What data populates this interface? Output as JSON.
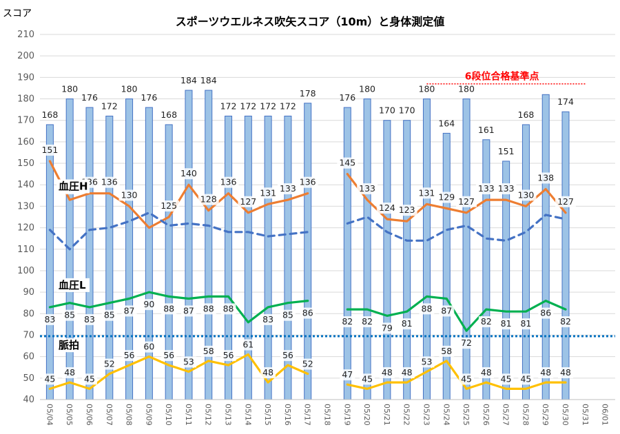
{
  "chart_data": {
    "type": "bar",
    "title": "スポーツウエルネス吹矢スコア（10m）と身体測定値",
    "ylabel": "スコア",
    "ylim": [
      40,
      210
    ],
    "yticks": [
      40,
      50,
      60,
      70,
      80,
      90,
      100,
      110,
      120,
      130,
      140,
      150,
      160,
      170,
      180,
      190,
      200,
      210
    ],
    "categories": [
      "05/04",
      "05/05",
      "05/06",
      "05/07",
      "05/08",
      "05/09",
      "05/10",
      "05/11",
      "05/12",
      "05/13",
      "05/14",
      "05/15",
      "05/16",
      "05/17",
      "05/18",
      "05/19",
      "05/20",
      "05/21",
      "05/22",
      "05/23",
      "05/24",
      "05/25",
      "05/26",
      "05/27",
      "05/28",
      "05/29",
      "05/30",
      "05/31",
      "06/01"
    ],
    "grid": true,
    "colors": {
      "bar": "#9dc3e6",
      "bar_edge": "#4472c4",
      "bp_high": "#ed7d31",
      "bp_trend": "#4472c4",
      "bp_low": "#00b050",
      "pulse": "#ffc000",
      "reference": "#ff0000",
      "threshold": "#0070c0"
    },
    "series": [
      {
        "name": "スコア",
        "type": "bar",
        "values": [
          168,
          180,
          176,
          172,
          180,
          176,
          168,
          184,
          184,
          172,
          172,
          172,
          172,
          178,
          null,
          176,
          180,
          170,
          170,
          180,
          164,
          180,
          161,
          151,
          168,
          182,
          174,
          null,
          null
        ],
        "labels": [
          "168",
          "180",
          "176",
          "172",
          "180",
          "176",
          "168",
          "184",
          "184",
          "172",
          "172",
          "172",
          "172",
          "178",
          "",
          "176",
          "180",
          "170",
          "170",
          "180",
          "164",
          "180",
          "161",
          "151",
          "168",
          "",
          "174",
          "",
          ""
        ]
      },
      {
        "name": "血圧H",
        "type": "line",
        "values": [
          151,
          133,
          136,
          136,
          130,
          120,
          125,
          140,
          128,
          136,
          127,
          131,
          133,
          136,
          null,
          145,
          133,
          124,
          123,
          131,
          129,
          127,
          133,
          133,
          130,
          138,
          127,
          null,
          null
        ],
        "labels": [
          "151",
          "133",
          "136",
          "136",
          "130",
          "",
          "125",
          "140",
          "128",
          "136",
          "127",
          "131",
          "133",
          "136",
          "",
          "145",
          "133",
          "124",
          "123",
          "131",
          "129",
          "127",
          "133",
          "133",
          "130",
          "138",
          "127",
          "",
          ""
        ]
      },
      {
        "type": "line",
        "dashed": true,
        "values": [
          119,
          110,
          119,
          120,
          123,
          127,
          121,
          122,
          121,
          118,
          118,
          116,
          117,
          118,
          null,
          122,
          125,
          118,
          114,
          114,
          119,
          121,
          115,
          114,
          118,
          126,
          124,
          null,
          null
        ]
      },
      {
        "name": "血圧L",
        "type": "line",
        "values": [
          83,
          85,
          83,
          85,
          87,
          90,
          88,
          87,
          88,
          88,
          76,
          83,
          85,
          86,
          null,
          82,
          82,
          79,
          81,
          88,
          87,
          72,
          82,
          81,
          81,
          86,
          82,
          null,
          null
        ],
        "labels": [
          "83",
          "85",
          "83",
          "85",
          "87",
          "90",
          "88",
          "87",
          "88",
          "88",
          "",
          "83",
          "85",
          "86",
          "",
          "82",
          "82",
          "79",
          "81",
          "88",
          "87",
          "72",
          "82",
          "81",
          "81",
          "86",
          "82",
          "",
          ""
        ]
      },
      {
        "name": "脈拍",
        "type": "line",
        "values": [
          45,
          48,
          45,
          52,
          56,
          60,
          56,
          53,
          58,
          56,
          61,
          48,
          56,
          52,
          null,
          47,
          45,
          48,
          48,
          53,
          58,
          45,
          48,
          45,
          45,
          48,
          48,
          null,
          null
        ],
        "labels": [
          "45",
          "48",
          "45",
          "52",
          "56",
          "60",
          "56",
          "53",
          "58",
          "56",
          "61",
          "48",
          "56",
          "52",
          "",
          "47",
          "45",
          "48",
          "48",
          "53",
          "58",
          "45",
          "48",
          "45",
          "45",
          "48",
          "48",
          "",
          ""
        ]
      }
    ],
    "reference_line": {
      "label": "6段位合格基準点",
      "value": 187,
      "from_category": "05/23",
      "to_category": "05/31"
    },
    "threshold_line": {
      "value": 69.5
    }
  }
}
